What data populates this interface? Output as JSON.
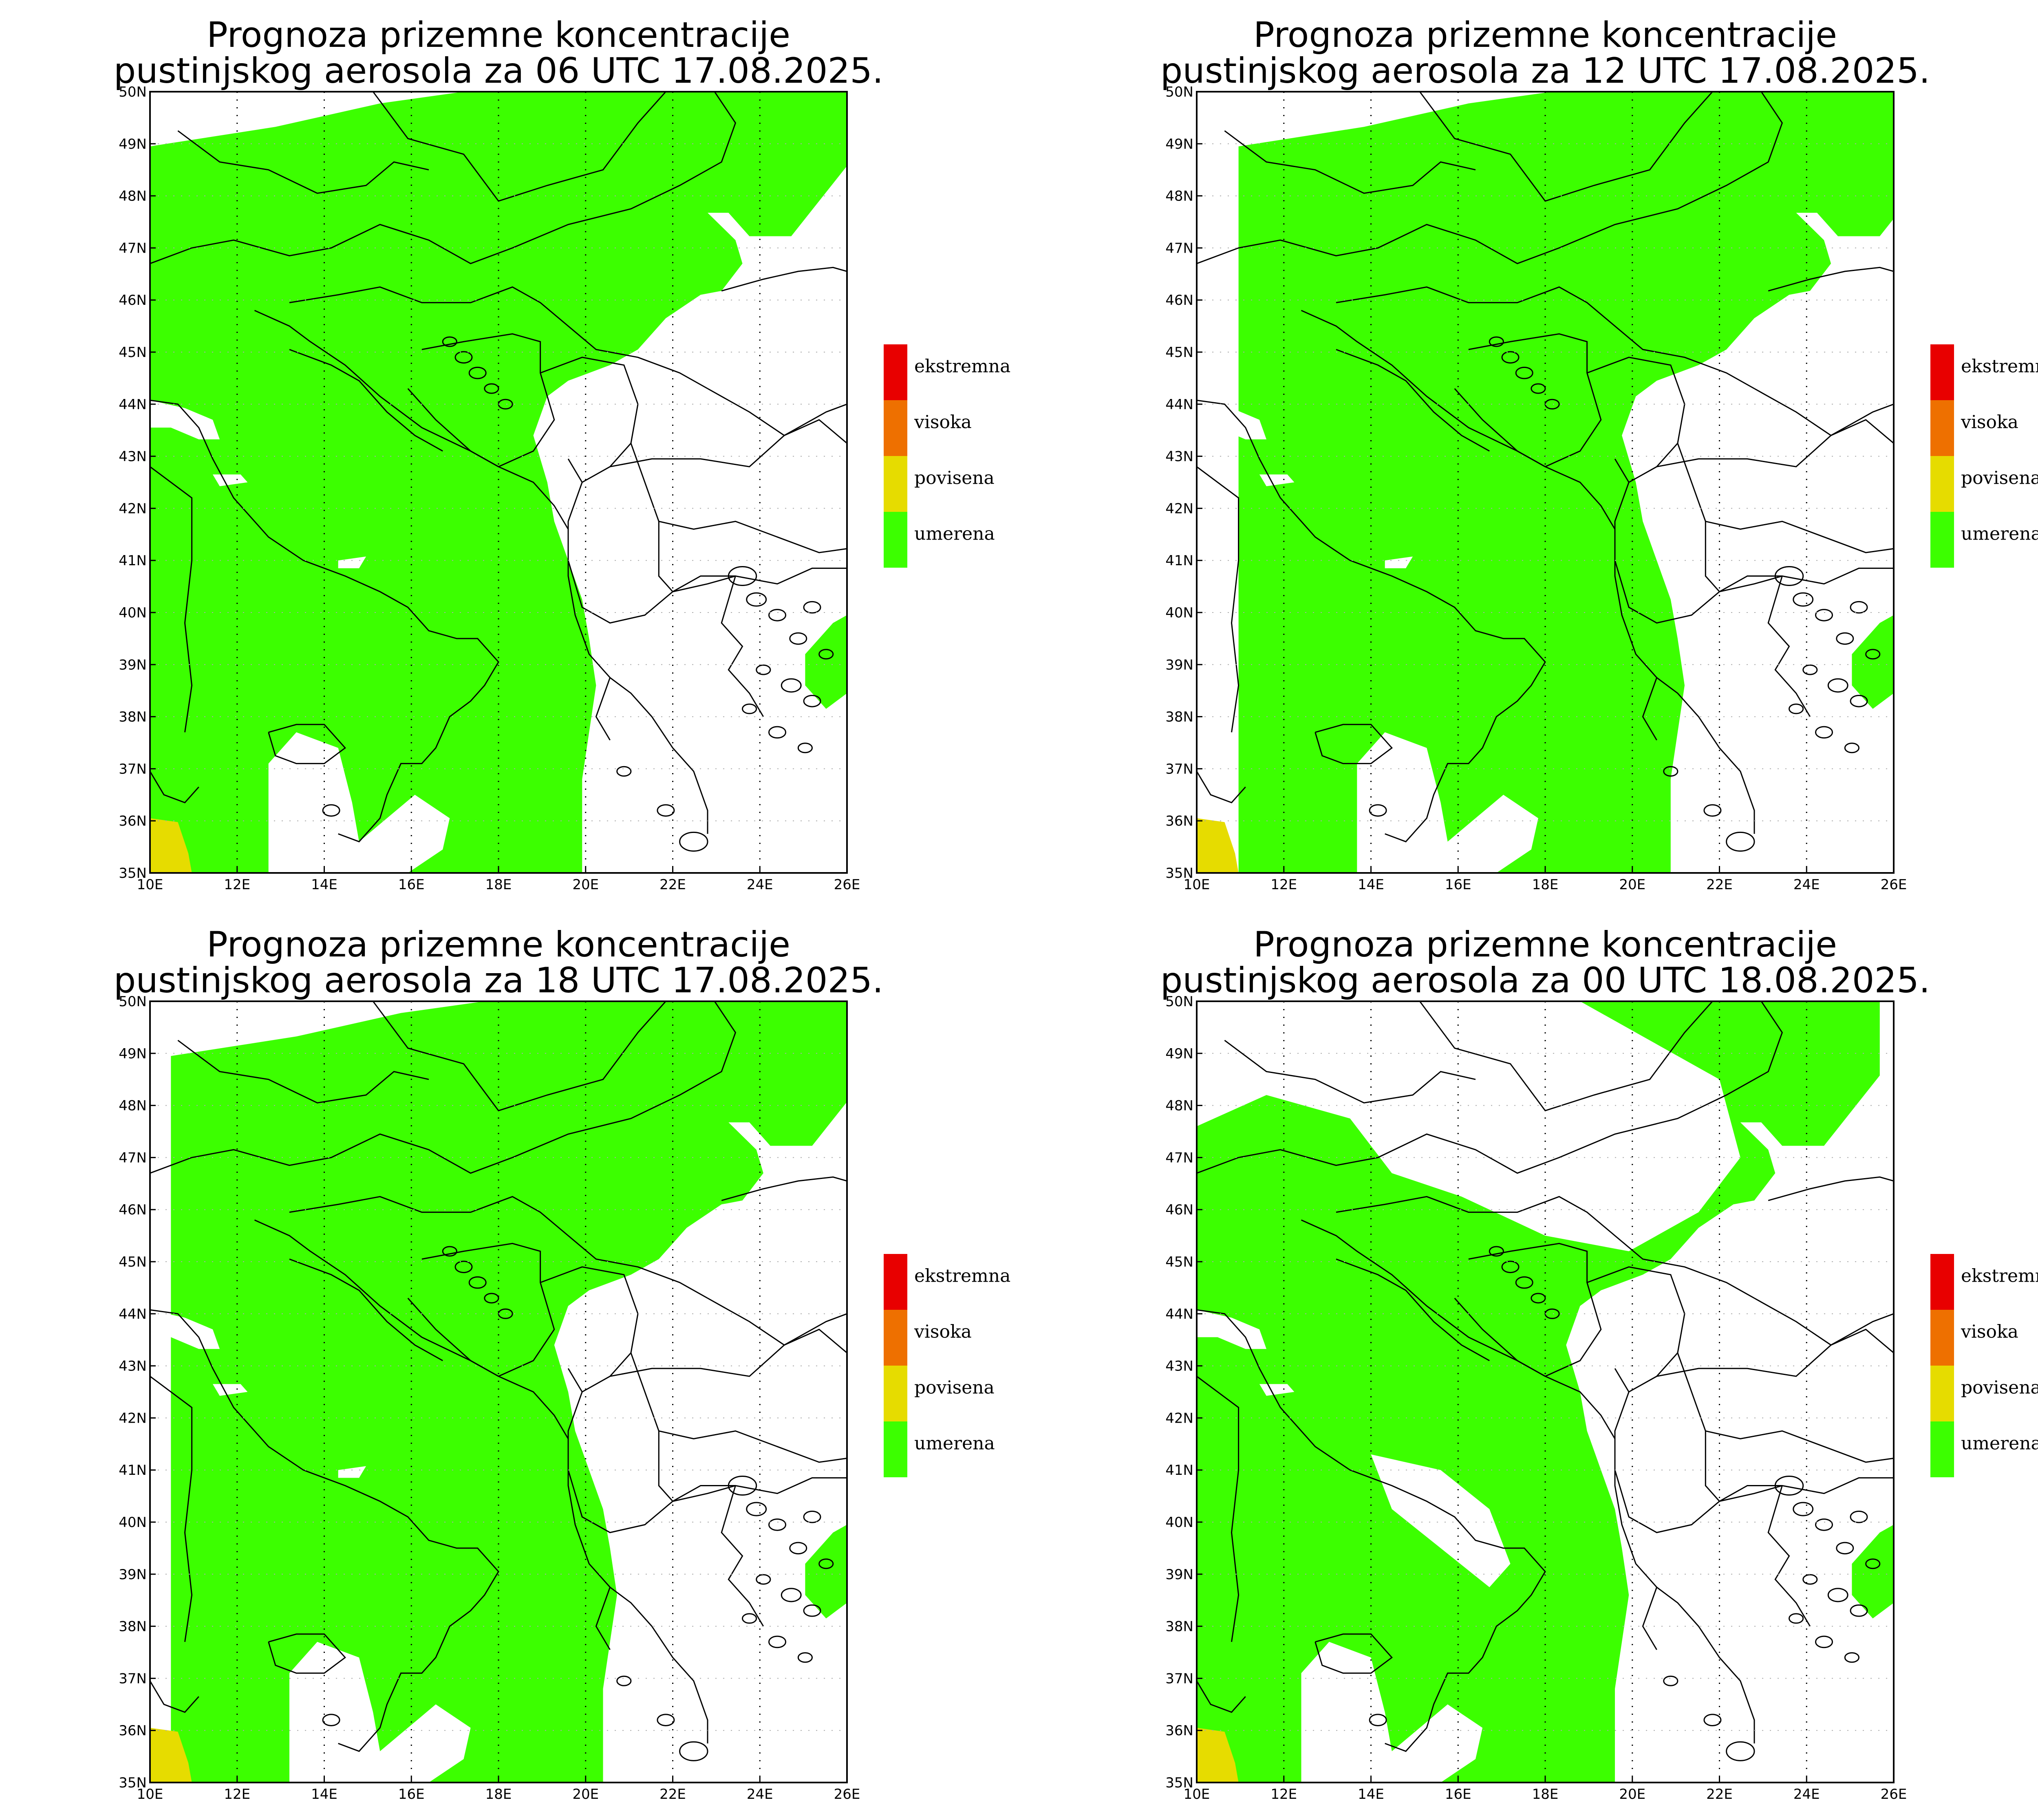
{
  "legend": [
    {
      "label": "ekstremna",
      "color": "#e80000"
    },
    {
      "label": "visoka",
      "color": "#ee7000"
    },
    {
      "label": "povisena",
      "color": "#e6dc00"
    },
    {
      "label": "umerena",
      "color": "#3cff00"
    }
  ],
  "axes": {
    "lon_ticks": [
      "10E",
      "12E",
      "14E",
      "16E",
      "18E",
      "20E",
      "22E",
      "24E",
      "26E"
    ],
    "lat_ticks": [
      "50N",
      "49N",
      "48N",
      "47N",
      "46N",
      "45N",
      "44N",
      "43N",
      "42N",
      "41N",
      "40N",
      "39N",
      "38N",
      "37N",
      "36N",
      "35N"
    ],
    "lon_range": [
      10,
      26
    ],
    "lat_range": [
      35,
      50
    ],
    "grid": "dotted"
  },
  "panels": [
    {
      "title_line1": "Prognoza prizemne koncentracije",
      "title_line2": "pustinjskog aerosola za 06 UTC 17.08.2025."
    },
    {
      "title_line1": "Prognoza prizemne koncentracije",
      "title_line2": "pustinjskog aerosola za 12 UTC 17.08.2025."
    },
    {
      "title_line1": "Prognoza prizemne koncentracije",
      "title_line2": "pustinjskog aerosola za 18 UTC 17.08.2025."
    },
    {
      "title_line1": "Prognoza prizemne koncentracije",
      "title_line2": "pustinjskog aerosola za 00 UTC 18.08.2025."
    }
  ]
}
